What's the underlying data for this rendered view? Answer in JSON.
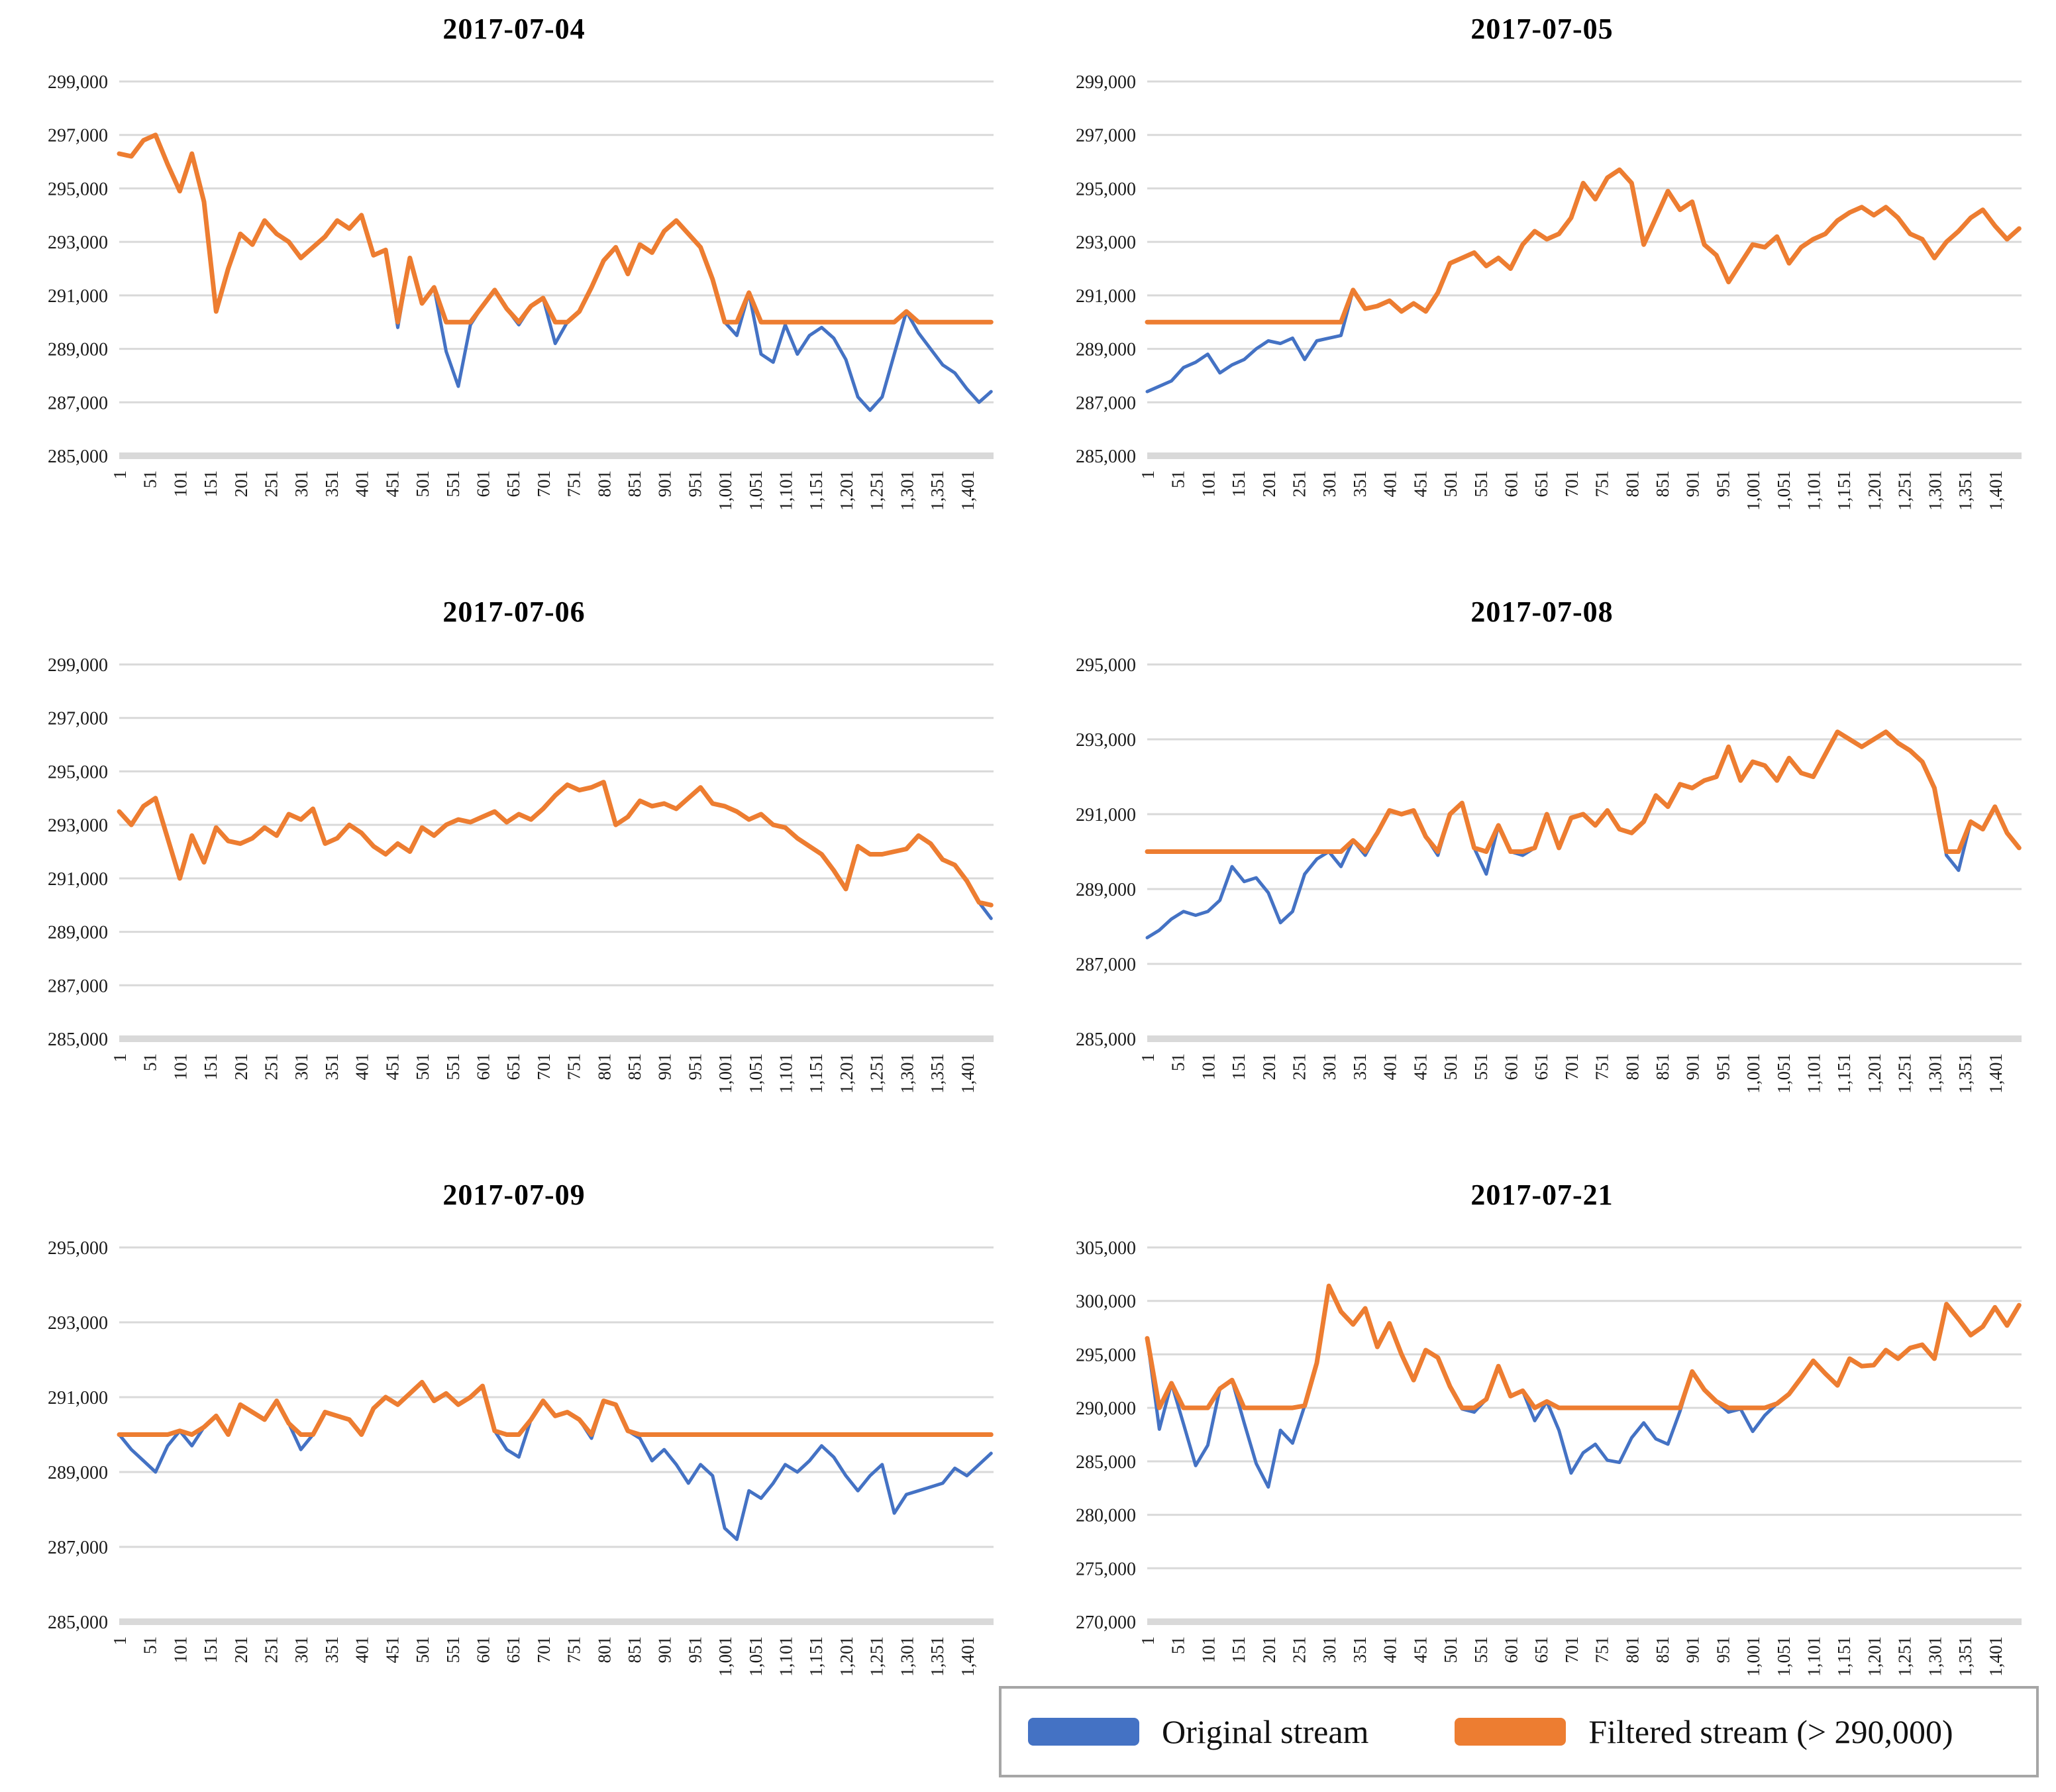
{
  "colors": {
    "original": "#4472C4",
    "filtered": "#ED7D31",
    "gridline": "#D9D9D9",
    "axis_bar": "#D9D9D9",
    "label_text": "#1a1a1a",
    "legend_border": "#A6A6A6"
  },
  "legend": {
    "items": [
      {
        "label": "Original stream",
        "color": "#4472C4"
      },
      {
        "label": "Filtered stream (> 290,000)",
        "color": "#ED7D31"
      }
    ]
  },
  "chart_data": [
    {
      "type": "line",
      "title": "2017-07-04",
      "ylim": [
        285000,
        299000
      ],
      "y_tick_step": 2000,
      "x_ticks": {
        "start": 1,
        "step": 50,
        "end": 1401
      },
      "x_max": 1445,
      "threshold": 290000,
      "grid": true,
      "legend_position": "bottom-right-shared",
      "series": [
        {
          "name": "Original stream",
          "x_start": 1,
          "x_step": 20,
          "values": [
            296300,
            296200,
            296800,
            297000,
            295900,
            294900,
            296300,
            294500,
            290400,
            292000,
            293300,
            292900,
            293800,
            293300,
            293000,
            292400,
            292800,
            293200,
            293800,
            293500,
            294000,
            292500,
            292700,
            289800,
            292400,
            290700,
            291300,
            288900,
            287600,
            289900,
            290600,
            291200,
            290500,
            289900,
            290600,
            290900,
            289200,
            290000,
            290400,
            291300,
            292300,
            292800,
            291800,
            292900,
            292600,
            293400,
            293800,
            293300,
            292800,
            291600,
            290000,
            289500,
            291100,
            288800,
            288500,
            289900,
            288800,
            289500,
            289800,
            289400,
            288600,
            287200,
            286700,
            287200,
            288800,
            290400,
            289600,
            289000,
            288400,
            288100,
            287500,
            287000,
            287400
          ]
        },
        {
          "name": "Filtered stream (> 290,000)",
          "rule": "max(original, 290000)"
        }
      ]
    },
    {
      "type": "line",
      "title": "2017-07-05",
      "ylim": [
        285000,
        299000
      ],
      "y_tick_step": 2000,
      "x_ticks": {
        "start": 1,
        "step": 50,
        "end": 1401
      },
      "x_max": 1445,
      "threshold": 290000,
      "grid": true,
      "series": [
        {
          "name": "Original stream",
          "x_start": 1,
          "x_step": 20,
          "values": [
            287400,
            287600,
            287800,
            288300,
            288500,
            288800,
            288100,
            288400,
            288600,
            289000,
            289300,
            289200,
            289400,
            288600,
            289300,
            289400,
            289500,
            291200,
            290500,
            290600,
            290800,
            290400,
            290700,
            290400,
            291100,
            292200,
            292400,
            292600,
            292100,
            292400,
            292000,
            292900,
            293400,
            293100,
            293300,
            293900,
            295200,
            294600,
            295400,
            295700,
            295200,
            292900,
            293900,
            294900,
            294200,
            294500,
            292900,
            292500,
            291500,
            292200,
            292900,
            292800,
            293200,
            292200,
            292800,
            293100,
            293300,
            293800,
            294100,
            294300,
            294000,
            294300,
            293900,
            293300,
            293100,
            292400,
            293000,
            293400,
            293900,
            294200,
            293600,
            293100,
            293500
          ]
        },
        {
          "name": "Filtered stream (> 290,000)",
          "rule": "max(original, 290000)"
        }
      ]
    },
    {
      "type": "line",
      "title": "2017-07-06",
      "ylim": [
        285000,
        299000
      ],
      "y_tick_step": 2000,
      "x_ticks": {
        "start": 1,
        "step": 50,
        "end": 1401
      },
      "x_max": 1445,
      "threshold": 290000,
      "grid": true,
      "series": [
        {
          "name": "Original stream",
          "x_start": 1,
          "x_step": 20,
          "values": [
            293500,
            293000,
            293700,
            294000,
            292500,
            291000,
            292600,
            291600,
            292900,
            292400,
            292300,
            292500,
            292900,
            292600,
            293400,
            293200,
            293600,
            292300,
            292500,
            293000,
            292700,
            292200,
            291900,
            292300,
            292000,
            292900,
            292600,
            293000,
            293200,
            293100,
            293300,
            293500,
            293100,
            293400,
            293200,
            293600,
            294100,
            294500,
            294300,
            294400,
            294600,
            293000,
            293300,
            293900,
            293700,
            293800,
            293600,
            294000,
            294400,
            293800,
            293700,
            293500,
            293200,
            293400,
            293000,
            292900,
            292500,
            292200,
            291900,
            291300,
            290600,
            292200,
            291900,
            291900,
            292000,
            292100,
            292600,
            292300,
            291700,
            291500,
            290900,
            290100,
            289500
          ]
        },
        {
          "name": "Filtered stream (> 290,000)",
          "rule": "max(original, 290000)"
        }
      ]
    },
    {
      "type": "line",
      "title": "2017-07-08",
      "ylim": [
        285000,
        295000
      ],
      "y_tick_step": 2000,
      "x_ticks": {
        "start": 1,
        "step": 50,
        "end": 1401
      },
      "x_max": 1445,
      "threshold": 290000,
      "grid": true,
      "series": [
        {
          "name": "Original stream",
          "x_start": 1,
          "x_step": 20,
          "values": [
            287700,
            287900,
            288200,
            288400,
            288300,
            288400,
            288700,
            289600,
            289200,
            289300,
            288900,
            288100,
            288400,
            289400,
            289800,
            290000,
            289600,
            290300,
            289900,
            290500,
            291100,
            291000,
            291100,
            290400,
            289900,
            291000,
            291300,
            290100,
            289400,
            290700,
            290000,
            289900,
            290100,
            291000,
            290100,
            290900,
            291000,
            290700,
            291100,
            290600,
            290500,
            290800,
            291500,
            291200,
            291800,
            291700,
            291900,
            292000,
            292800,
            291900,
            292400,
            292300,
            291900,
            292500,
            292100,
            292000,
            292600,
            293200,
            293000,
            292800,
            293000,
            293200,
            292900,
            292700,
            292400,
            291700,
            289900,
            289500,
            290800,
            290600,
            291200,
            290500,
            290100
          ]
        },
        {
          "name": "Filtered stream (> 290,000)",
          "rule": "max(original, 290000)"
        }
      ]
    },
    {
      "type": "line",
      "title": "2017-07-09",
      "ylim": [
        285000,
        295000
      ],
      "y_tick_step": 2000,
      "x_ticks": {
        "start": 1,
        "step": 50,
        "end": 1401
      },
      "x_max": 1445,
      "threshold": 290000,
      "grid": true,
      "series": [
        {
          "name": "Original stream",
          "x_start": 1,
          "x_step": 20,
          "values": [
            290000,
            289600,
            289300,
            289000,
            289700,
            290100,
            289700,
            290200,
            290500,
            290000,
            290800,
            290600,
            290400,
            290900,
            290300,
            289600,
            290000,
            290600,
            290500,
            290400,
            290000,
            290700,
            291000,
            290800,
            291100,
            291400,
            290900,
            291100,
            290800,
            291000,
            291300,
            290100,
            289600,
            289400,
            290400,
            290900,
            290500,
            290600,
            290400,
            289900,
            290900,
            290800,
            290100,
            289900,
            289300,
            289600,
            289200,
            288700,
            289200,
            288900,
            287500,
            287200,
            288500,
            288300,
            288700,
            289200,
            289000,
            289300,
            289700,
            289400,
            288900,
            288500,
            288900,
            289200,
            287900,
            288400,
            288500,
            288600,
            288700,
            289100,
            288900,
            289200,
            289500
          ]
        },
        {
          "name": "Filtered stream (> 290,000)",
          "rule": "max(original, 290000)"
        }
      ]
    },
    {
      "type": "line",
      "title": "2017-07-21",
      "ylim": [
        270000,
        305000
      ],
      "y_tick_step": 5000,
      "x_ticks": {
        "start": 1,
        "step": 50,
        "end": 1401
      },
      "x_max": 1445,
      "threshold": 290000,
      "grid": true,
      "series": [
        {
          "name": "Original stream",
          "x_start": 1,
          "x_step": 20,
          "values": [
            296500,
            288000,
            292300,
            288500,
            284600,
            286500,
            291800,
            292600,
            288600,
            284800,
            282600,
            287900,
            286700,
            290200,
            294200,
            301400,
            299000,
            297800,
            299300,
            295700,
            297900,
            295000,
            292600,
            295400,
            294700,
            292000,
            289900,
            289600,
            290800,
            293900,
            291100,
            291600,
            288800,
            290600,
            287900,
            283900,
            285800,
            286600,
            285100,
            284900,
            287200,
            288600,
            287100,
            286600,
            289700,
            293400,
            291700,
            290600,
            289600,
            289900,
            287800,
            289300,
            290400,
            291300,
            292800,
            294400,
            293200,
            292100,
            294600,
            293900,
            294000,
            295400,
            294600,
            295600,
            295900,
            294600,
            299700,
            298300,
            296800,
            297600,
            299400,
            297700,
            299600
          ]
        },
        {
          "name": "Filtered stream (> 290,000)",
          "rule": "max(original, 290000)"
        }
      ]
    }
  ]
}
